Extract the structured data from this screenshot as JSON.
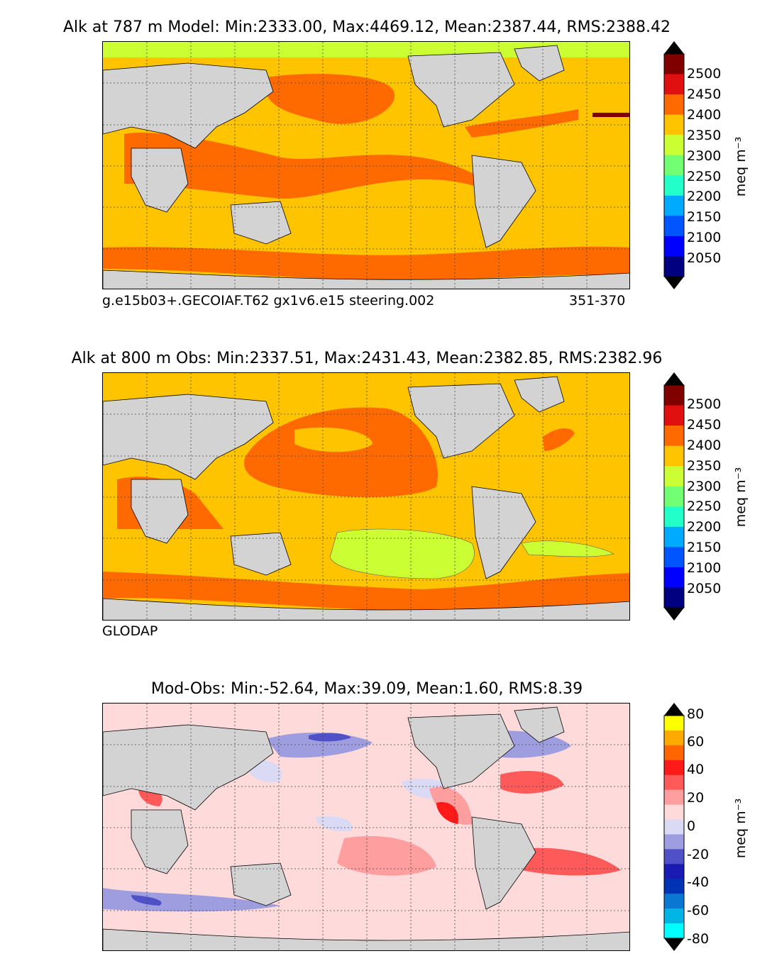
{
  "panels": [
    {
      "title": "Alk at 787 m Model: Min:2333.00, Max:4469.12, Mean:2387.44, RMS:2388.42",
      "caption_left": "g.e15b03+.GECOIAF.T62 gx1v6.e15 steering.002",
      "caption_right": "351-370",
      "colorbar": {
        "unit": "meq m⁻³",
        "ticks": [
          "2500",
          "2450",
          "2400",
          "2350",
          "2300",
          "2250",
          "2200",
          "2150",
          "2100",
          "2050"
        ],
        "colors_top_to_bottom": [
          "#800000",
          "#e01010",
          "#ff6a00",
          "#ffc400",
          "#ccff33",
          "#73ff73",
          "#22ffc8",
          "#00aaff",
          "#0055ff",
          "#0000ff",
          "#000080"
        ],
        "extend_top_color": "#000000",
        "extend_bottom_color": "#000000"
      }
    },
    {
      "title": "Alk at 800 m Obs: Min:2337.51, Max:2431.43, Mean:2382.85, RMS:2382.96",
      "caption_left": "GLODAP",
      "colorbar": {
        "unit": "meq m⁻³",
        "ticks": [
          "2500",
          "2450",
          "2400",
          "2350",
          "2300",
          "2250",
          "2200",
          "2150",
          "2100",
          "2050"
        ],
        "colors_top_to_bottom": [
          "#800000",
          "#e01010",
          "#ff6a00",
          "#ffc400",
          "#ccff33",
          "#73ff73",
          "#22ffc8",
          "#00aaff",
          "#0055ff",
          "#0000ff",
          "#000080"
        ],
        "extend_top_color": "#000000",
        "extend_bottom_color": "#000000"
      }
    },
    {
      "title": "Mod-Obs: Min:-52.64, Max:39.09, Mean:1.60, RMS:8.39",
      "colorbar": {
        "unit": "meq m⁻³",
        "ticks": [
          "80",
          "60",
          "40",
          "20",
          "0",
          "-20",
          "-40",
          "-60",
          "-80"
        ],
        "colors_top_to_bottom": [
          "#ffff00",
          "#ffaa00",
          "#ff6600",
          "#ff1a1a",
          "#ff5a5a",
          "#ff9e9e",
          "#ffdada",
          "#dadaf5",
          "#9d9de0",
          "#5050c8",
          "#1a1ab4",
          "#0032b4",
          "#0a78d2",
          "#00b4e6",
          "#00ffff"
        ],
        "extend_top_color": "#000000",
        "extend_bottom_color": "#000000"
      }
    }
  ],
  "map_colors": {
    "land": "#d3d3d3",
    "ice": "#ffffff",
    "coast": "#000000"
  }
}
